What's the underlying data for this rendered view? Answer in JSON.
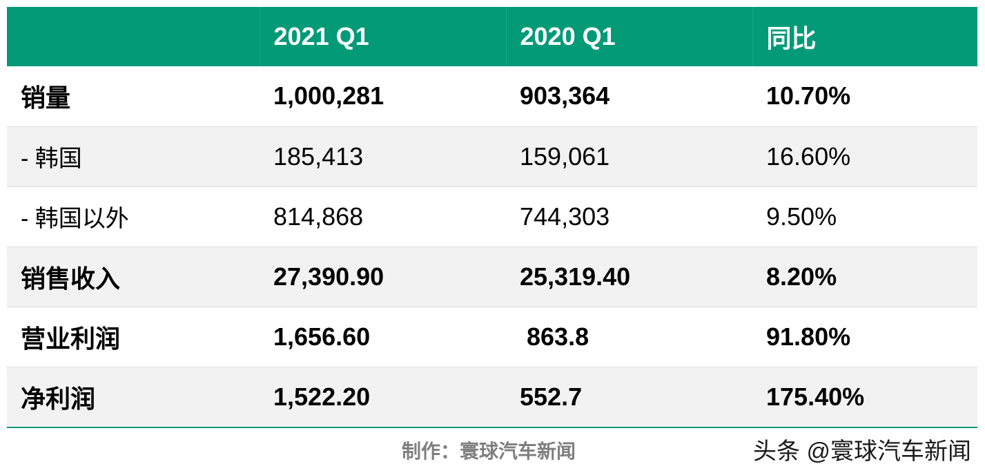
{
  "table": {
    "headers": [
      "",
      "2021 Q1",
      "2020 Q1",
      "同比"
    ],
    "rows": [
      {
        "label": "销量",
        "q1_2021": "1,000,281",
        "q1_2020": "903,364",
        "yoy": "10.70%"
      },
      {
        "label": "- 韩国",
        "q1_2021": "185,413",
        "q1_2020": "159,061",
        "yoy": "16.60%"
      },
      {
        "label": "- 韩国以外",
        "q1_2021": "814,868",
        "q1_2020": "744,303",
        "yoy": "9.50%"
      },
      {
        "label": "销售收入",
        "q1_2021": "27,390.90",
        "q1_2020": "25,319.40",
        "yoy": "8.20%"
      },
      {
        "label": "营业利润",
        "q1_2021": "1,656.60",
        "q1_2020": " 863.8",
        "yoy": "91.80%"
      },
      {
        "label": "净利润",
        "q1_2021": "1,522.20",
        "q1_2020": "552.7",
        "yoy": "175.40%"
      }
    ]
  },
  "footer": {
    "credit": "制作：寰球汽车新闻",
    "watermark": "头条 @寰球汽车新闻"
  },
  "colors": {
    "header_bg": "#039a78",
    "row_alt_bg": "#f2f2f2",
    "credit_text": "#7f7f7f"
  }
}
